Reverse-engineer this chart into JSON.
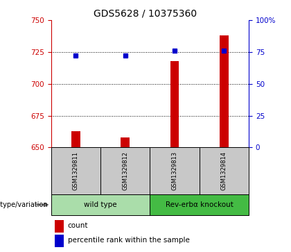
{
  "title": "GDS5628 / 10375360",
  "categories": [
    "GSM1329811",
    "GSM1329812",
    "GSM1329813",
    "GSM1329814"
  ],
  "bar_values": [
    663,
    658,
    718,
    738
  ],
  "dot_values": [
    722,
    722,
    726,
    726
  ],
  "left_ylim": [
    650,
    750
  ],
  "right_ylim": [
    0,
    100
  ],
  "left_yticks": [
    650,
    675,
    700,
    725,
    750
  ],
  "right_yticks": [
    0,
    25,
    50,
    75,
    100
  ],
  "right_yticklabels": [
    "0",
    "25",
    "50",
    "75",
    "100%"
  ],
  "bar_color": "#cc0000",
  "dot_color": "#0000cc",
  "bar_width": 0.18,
  "groups": [
    {
      "label": "wild type",
      "indices": [
        0,
        1
      ],
      "color": "#aaddaa"
    },
    {
      "label": "Rev-erbα knockout",
      "indices": [
        2,
        3
      ],
      "color": "#44bb44"
    }
  ],
  "group_label_prefix": "genotype/variation",
  "legend_count_label": "count",
  "legend_pct_label": "percentile rank within the sample",
  "grid_color": "#000000",
  "cell_bg_color": "#c8c8c8",
  "title_fontsize": 10,
  "tick_fontsize": 7.5
}
